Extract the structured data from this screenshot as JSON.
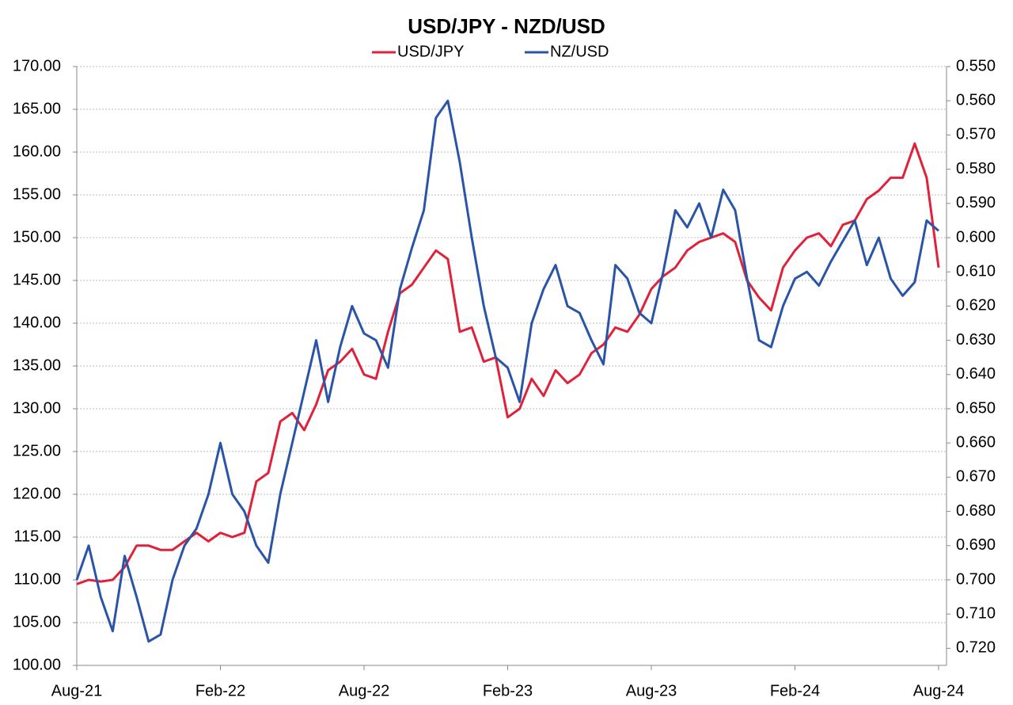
{
  "chart_data": {
    "type": "line",
    "title": "USD/JPY - NZD/USD",
    "categories": [
      "Aug-21",
      null,
      null,
      null,
      null,
      null,
      null,
      null,
      null,
      null,
      null,
      null,
      "Feb-22",
      null,
      null,
      null,
      null,
      null,
      null,
      null,
      null,
      null,
      null,
      null,
      "Aug-22",
      null,
      null,
      null,
      null,
      null,
      null,
      null,
      null,
      null,
      null,
      null,
      "Feb-23",
      null,
      null,
      null,
      null,
      null,
      null,
      null,
      null,
      null,
      null,
      null,
      "Aug-23",
      null,
      null,
      null,
      null,
      null,
      null,
      null,
      null,
      null,
      null,
      null,
      "Feb-24",
      null,
      null,
      null,
      null,
      null,
      null,
      null,
      null,
      null,
      null,
      null,
      "Aug-24"
    ],
    "series": [
      {
        "name": "USD/JPY",
        "color": "#e0213a",
        "values": [
          109.5,
          110,
          109.8,
          110,
          111.5,
          114,
          114,
          113.5,
          113.5,
          114.5,
          115.5,
          114.5,
          115.5,
          115,
          115.5,
          121.5,
          122.5,
          128.5,
          129.5,
          127.5,
          130.5,
          134.5,
          135.5,
          137,
          134,
          133.5,
          139,
          143.5,
          144.5,
          146.5,
          148.5,
          147.5,
          139,
          139.5,
          135.5,
          136,
          129,
          130,
          133.5,
          131.5,
          134.5,
          133,
          134,
          136.5,
          137.5,
          139.5,
          139,
          141,
          144,
          145.5,
          146.5,
          148.5,
          149.5,
          150,
          150.5,
          149.5,
          145,
          143,
          141.5,
          146.5,
          148.5,
          150,
          150.5,
          149,
          151.5,
          152,
          154.5,
          155.5,
          157,
          157,
          161,
          157,
          146.5
        ]
      },
      {
        "name": "NZ/USD",
        "color": "#2a55a6",
        "axis": "y2",
        "values": [
          0.7,
          0.69,
          0.705,
          0.715,
          0.693,
          0.705,
          0.718,
          0.716,
          0.7,
          0.69,
          0.685,
          0.675,
          0.66,
          0.675,
          0.68,
          0.69,
          0.695,
          0.675,
          0.66,
          0.645,
          0.63,
          0.648,
          0.632,
          0.62,
          0.628,
          0.63,
          0.638,
          0.615,
          0.603,
          0.592,
          0.565,
          0.56,
          0.578,
          0.6,
          0.62,
          0.635,
          0.638,
          0.648,
          0.625,
          0.615,
          0.608,
          0.62,
          0.622,
          0.63,
          0.637,
          0.608,
          0.612,
          0.622,
          0.625,
          0.61,
          0.592,
          0.597,
          0.59,
          0.6,
          0.586,
          0.592,
          0.612,
          0.63,
          0.632,
          0.62,
          0.612,
          0.61,
          0.614,
          0.607,
          0.601,
          0.595,
          0.608,
          0.6,
          0.612,
          0.617,
          0.613,
          0.595,
          0.598
        ]
      }
    ],
    "ylim": [
      100,
      170
    ],
    "yticks": [
      {
        "value": 100,
        "label": "100.00"
      },
      {
        "value": 105,
        "label": "105.00"
      },
      {
        "value": 110,
        "label": "110.00"
      },
      {
        "value": 115,
        "label": "115.00"
      },
      {
        "value": 120,
        "label": "120.00"
      },
      {
        "value": 125,
        "label": "125.00"
      },
      {
        "value": 130,
        "label": "130.00"
      },
      {
        "value": 135,
        "label": "135.00"
      },
      {
        "value": 140,
        "label": "140.00"
      },
      {
        "value": 145,
        "label": "145.00"
      },
      {
        "value": 150,
        "label": "150.00"
      },
      {
        "value": 155,
        "label": "155.00"
      },
      {
        "value": 160,
        "label": "160.00"
      },
      {
        "value": 165,
        "label": "165.00"
      },
      {
        "value": 170,
        "label": "170.00"
      }
    ],
    "y2lim": [
      0.725,
      0.55
    ],
    "y2ticks": [
      {
        "value": 0.55,
        "label": "0.550"
      },
      {
        "value": 0.56,
        "label": "0.560"
      },
      {
        "value": 0.57,
        "label": "0.570"
      },
      {
        "value": 0.58,
        "label": "0.580"
      },
      {
        "value": 0.59,
        "label": "0.590"
      },
      {
        "value": 0.6,
        "label": "0.600"
      },
      {
        "value": 0.61,
        "label": "0.610"
      },
      {
        "value": 0.62,
        "label": "0.620"
      },
      {
        "value": 0.63,
        "label": "0.630"
      },
      {
        "value": 0.64,
        "label": "0.640"
      },
      {
        "value": 0.65,
        "label": "0.650"
      },
      {
        "value": 0.66,
        "label": "0.660"
      },
      {
        "value": 0.67,
        "label": "0.670"
      },
      {
        "value": 0.68,
        "label": "0.680"
      },
      {
        "value": 0.69,
        "label": "0.690"
      },
      {
        "value": 0.7,
        "label": "0.700"
      },
      {
        "value": 0.71,
        "label": "0.710"
      },
      {
        "value": 0.72,
        "label": "0.720"
      }
    ],
    "grid": true
  }
}
